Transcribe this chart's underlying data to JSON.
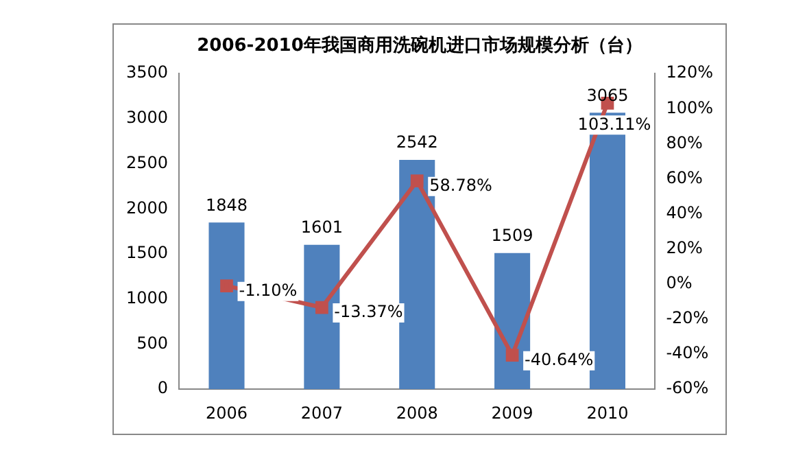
{
  "chart_data": {
    "type": "bar",
    "title": "2006-2010年我国商用洗碗机进口市场规模分析（台）",
    "categories": [
      "2006",
      "2007",
      "2008",
      "2009",
      "2010"
    ],
    "series": [
      {
        "color": "#4f81bd",
        "values": [
          1848,
          1601,
          2542,
          1509,
          3065
        ],
        "value_labels": [
          "1848",
          "1601",
          "2542",
          "1509",
          "3065"
        ]
      },
      {
        "type": "line",
        "axis": "y2",
        "color": "#c0504d",
        "values": [
          -1.1,
          -13.37,
          58.78,
          -40.64,
          103.11
        ],
        "value_labels": [
          "-1.10%",
          "-13.37%",
          "58.78%",
          "-40.64%",
          "103.11%"
        ]
      }
    ],
    "ylim": [
      0,
      3500
    ],
    "yticks": [
      0,
      500,
      1000,
      1500,
      2000,
      2500,
      3000,
      3500
    ],
    "y2lim": [
      -60,
      120
    ],
    "y2ticks": [
      {
        "value": -60,
        "label": "-60%"
      },
      {
        "value": -40,
        "label": "-40%"
      },
      {
        "value": -20,
        "label": "-20%"
      },
      {
        "value": 0,
        "label": "0%"
      },
      {
        "value": 20,
        "label": "20%"
      },
      {
        "value": 40,
        "label": "40%"
      },
      {
        "value": 60,
        "label": "60%"
      },
      {
        "value": 80,
        "label": "80%"
      },
      {
        "value": 100,
        "label": "100%"
      },
      {
        "value": 120,
        "label": "120%"
      }
    ],
    "marker": "square",
    "line_style": "solid",
    "grid": false,
    "legend": false
  }
}
